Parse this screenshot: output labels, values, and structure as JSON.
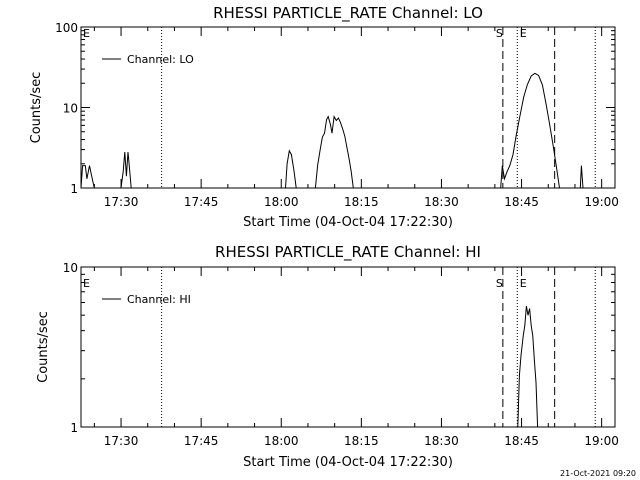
{
  "footer": {
    "timestamp": "21-Oct-2021 09:20"
  },
  "chart_data": [
    {
      "type": "line",
      "title": "RHESSI PARTICLE_RATE Channel: LO",
      "xlabel": "Start Time (04-Oct-04 17:22:30)",
      "ylabel": "Counts/sec",
      "yscale": "log",
      "xlim": [
        22.5,
        122.5
      ],
      "ylim": [
        1,
        100
      ],
      "xticks": [
        30,
        45,
        60,
        75,
        90,
        105,
        120
      ],
      "xtick_labels": [
        "17:30",
        "17:45",
        "18:00",
        "18:15",
        "18:30",
        "18:45",
        "19:00"
      ],
      "yticks": [
        1,
        10,
        100
      ],
      "ytick_labels": [
        "1",
        "10",
        "100"
      ],
      "legend": {
        "label": "Channel: LO",
        "position": "top-left"
      },
      "markers": [
        {
          "label": "E",
          "x": 22.5,
          "style": "none"
        },
        {
          "label": "",
          "x": 37.6,
          "style": "dotted"
        },
        {
          "label": "S",
          "x": 101.5,
          "style": "dashed"
        },
        {
          "label": "",
          "x": 104.2,
          "style": "dotted"
        },
        {
          "label": "E",
          "x": 104.3,
          "style": "none"
        },
        {
          "label": "",
          "x": 111.2,
          "style": "dashed"
        },
        {
          "label": "",
          "x": 118.8,
          "style": "dotted"
        }
      ],
      "series": [
        {
          "name": "Channel: LO",
          "segments": [
            [
              [
                22.5,
                1
              ],
              [
                22.8,
                1.9
              ],
              [
                23.3,
                1.9
              ],
              [
                23.6,
                1.3
              ],
              [
                24.1,
                1.9
              ],
              [
                24.5,
                1.4
              ],
              [
                25.0,
                1
              ]
            ],
            [
              [
                30.0,
                1
              ],
              [
                30.4,
                1.6
              ],
              [
                30.7,
                2.8
              ],
              [
                31.0,
                1.4
              ],
              [
                31.3,
                2.8
              ],
              [
                31.6,
                1.7
              ],
              [
                31.9,
                1
              ]
            ],
            [
              [
                60.8,
                1
              ],
              [
                61.1,
                2.0
              ],
              [
                61.5,
                2.9
              ],
              [
                61.9,
                2.6
              ],
              [
                62.4,
                1.6
              ],
              [
                62.8,
                1
              ]
            ],
            [
              [
                66.4,
                1
              ],
              [
                66.8,
                1.9
              ],
              [
                67.3,
                3.0
              ],
              [
                67.7,
                4.3
              ],
              [
                68.1,
                4.8
              ],
              [
                68.5,
                7.1
              ],
              [
                68.8,
                7.7
              ],
              [
                69.2,
                6.2
              ],
              [
                69.5,
                4.8
              ],
              [
                69.9,
                7.7
              ],
              [
                70.3,
                6.9
              ],
              [
                70.7,
                7.4
              ],
              [
                71.1,
                6.5
              ],
              [
                71.5,
                5.4
              ],
              [
                71.9,
                4.4
              ],
              [
                72.3,
                3.2
              ],
              [
                72.7,
                2.3
              ],
              [
                73.1,
                1.6
              ],
              [
                73.5,
                1
              ]
            ],
            [
              [
                101.1,
                1
              ],
              [
                101.4,
                1.9
              ],
              [
                101.8,
                1.3
              ],
              [
                102.3,
                1.6
              ],
              [
                102.8,
                1.9
              ],
              [
                103.4,
                2.6
              ],
              [
                104.0,
                4.5
              ],
              [
                104.7,
                7.8
              ],
              [
                105.4,
                13.5
              ],
              [
                106.1,
                19.3
              ],
              [
                106.8,
                24.6
              ],
              [
                107.5,
                26.6
              ],
              [
                108.2,
                25.0
              ],
              [
                108.9,
                19.1
              ],
              [
                109.6,
                11.0
              ],
              [
                110.3,
                5.9
              ],
              [
                111.0,
                3.1
              ],
              [
                111.6,
                1.7
              ],
              [
                112.1,
                1
              ]
            ],
            [
              [
                116.0,
                1
              ],
              [
                116.2,
                1.9
              ],
              [
                116.5,
                1
              ]
            ]
          ]
        }
      ]
    },
    {
      "type": "line",
      "title": "RHESSI PARTICLE_RATE Channel: HI",
      "xlabel": "Start Time (04-Oct-04 17:22:30)",
      "ylabel": "Counts/sec",
      "yscale": "log",
      "xlim": [
        22.5,
        122.5
      ],
      "ylim": [
        1,
        10
      ],
      "xticks": [
        30,
        45,
        60,
        75,
        90,
        105,
        120
      ],
      "xtick_labels": [
        "17:30",
        "17:45",
        "18:00",
        "18:15",
        "18:30",
        "18:45",
        "19:00"
      ],
      "yticks": [
        1,
        10
      ],
      "ytick_labels": [
        "1",
        "10"
      ],
      "legend": {
        "label": "Channel: HI",
        "position": "top-left"
      },
      "markers": [
        {
          "label": "E",
          "x": 22.5,
          "style": "none"
        },
        {
          "label": "",
          "x": 37.6,
          "style": "dotted"
        },
        {
          "label": "S",
          "x": 101.5,
          "style": "dashed"
        },
        {
          "label": "",
          "x": 104.2,
          "style": "dotted"
        },
        {
          "label": "E",
          "x": 104.3,
          "style": "none"
        },
        {
          "label": "",
          "x": 111.2,
          "style": "dashed"
        },
        {
          "label": "",
          "x": 118.8,
          "style": "dotted"
        }
      ],
      "series": [
        {
          "name": "Channel: HI",
          "segments": [
            [
              [
                104.3,
                1
              ],
              [
                104.6,
                2.1
              ],
              [
                104.9,
                2.8
              ],
              [
                105.3,
                3.7
              ],
              [
                105.6,
                4.3
              ],
              [
                105.9,
                5.7
              ],
              [
                106.2,
                5.0
              ],
              [
                106.5,
                5.5
              ],
              [
                106.8,
                4.3
              ],
              [
                107.1,
                3.7
              ],
              [
                107.4,
                2.6
              ],
              [
                107.7,
                1.9
              ],
              [
                108.0,
                1
              ]
            ]
          ]
        }
      ]
    }
  ]
}
